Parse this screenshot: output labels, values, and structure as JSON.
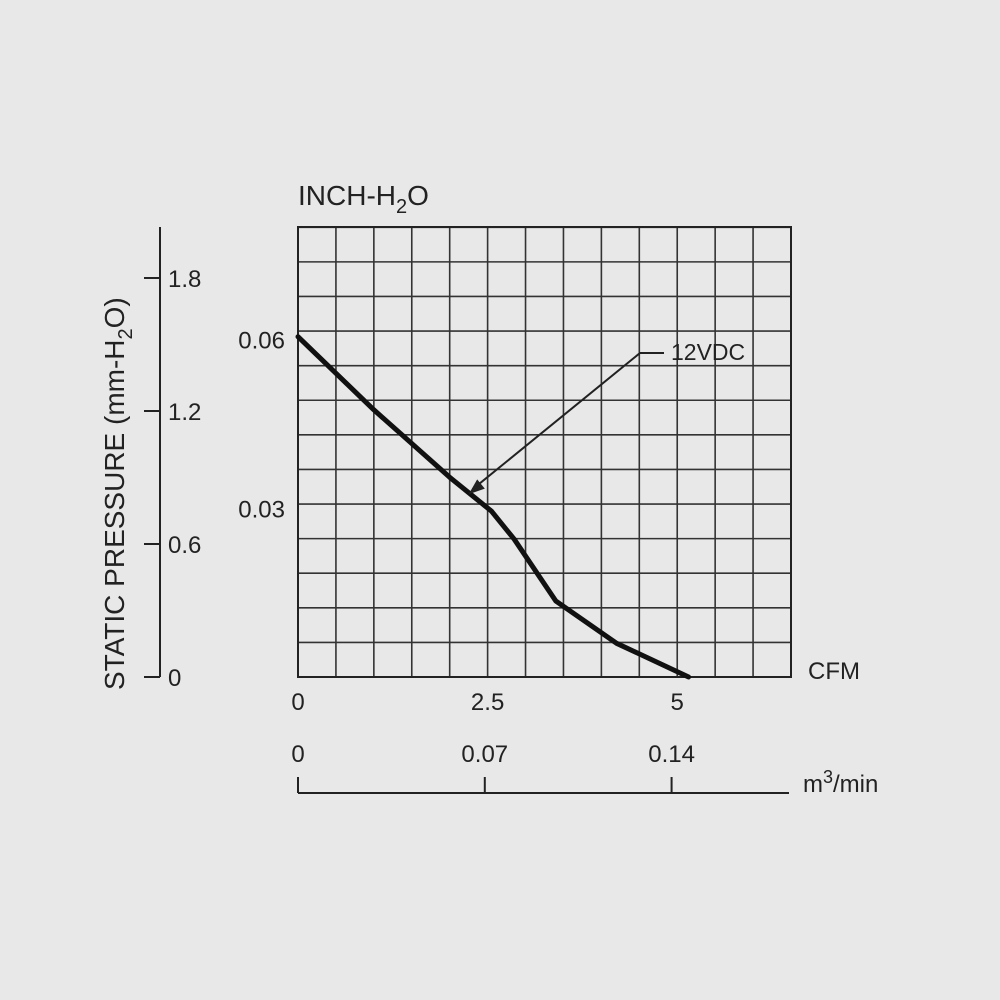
{
  "chart_data": {
    "type": "line",
    "title": "INCH-H₂O",
    "title_main": "INCH-H",
    "title_sub": "2",
    "title_end": "O",
    "grid": true,
    "colors": {
      "background": "#e8e8e8",
      "ink": "#222222",
      "grid": "#333333"
    },
    "x_axis": {
      "label": "CFM",
      "range": [
        0,
        6.5
      ],
      "ticks": [
        {
          "value": 0,
          "label": "0"
        },
        {
          "value": 2.5,
          "label": "2.5"
        },
        {
          "value": 5,
          "label": "5"
        }
      ],
      "grid_step": 0.5
    },
    "x_axis_metric": {
      "label_main": "m",
      "label_sup": "3",
      "label_end": "/min",
      "range": [
        0,
        0.184
      ],
      "ticks": [
        {
          "value": 0,
          "label": "0"
        },
        {
          "value": 0.07,
          "label": "0.07"
        },
        {
          "value": 0.14,
          "label": "0.14"
        }
      ]
    },
    "y_axis": {
      "label": "INCH-H₂O",
      "range": [
        0,
        0.08
      ],
      "ticks": [
        {
          "value": 0.06,
          "label": "0.06"
        },
        {
          "value": 0.03,
          "label": "0.03"
        }
      ],
      "grid_step": 0.00615
    },
    "y_axis_metric": {
      "label_main": "STATIC PRESSURE (mm-H",
      "label_sub": "2",
      "label_end": "O)",
      "range": [
        0,
        2.03
      ],
      "ticks": [
        {
          "value": 0,
          "label": "0"
        },
        {
          "value": 0.6,
          "label": "0.6"
        },
        {
          "value": 1.2,
          "label": "1.2"
        },
        {
          "value": 1.8,
          "label": "1.8"
        }
      ]
    },
    "series": [
      {
        "name": "12VDC",
        "x": [
          0,
          1.0,
          2.0,
          2.55,
          2.85,
          3.4,
          4.2,
          5.15
        ],
        "y": [
          0.0605,
          0.0475,
          0.0355,
          0.0295,
          0.0245,
          0.0135,
          0.006,
          0.0
        ]
      }
    ],
    "annotation": {
      "text": "12VDC",
      "target_x": 2.25,
      "target_y": 0.0325
    }
  }
}
